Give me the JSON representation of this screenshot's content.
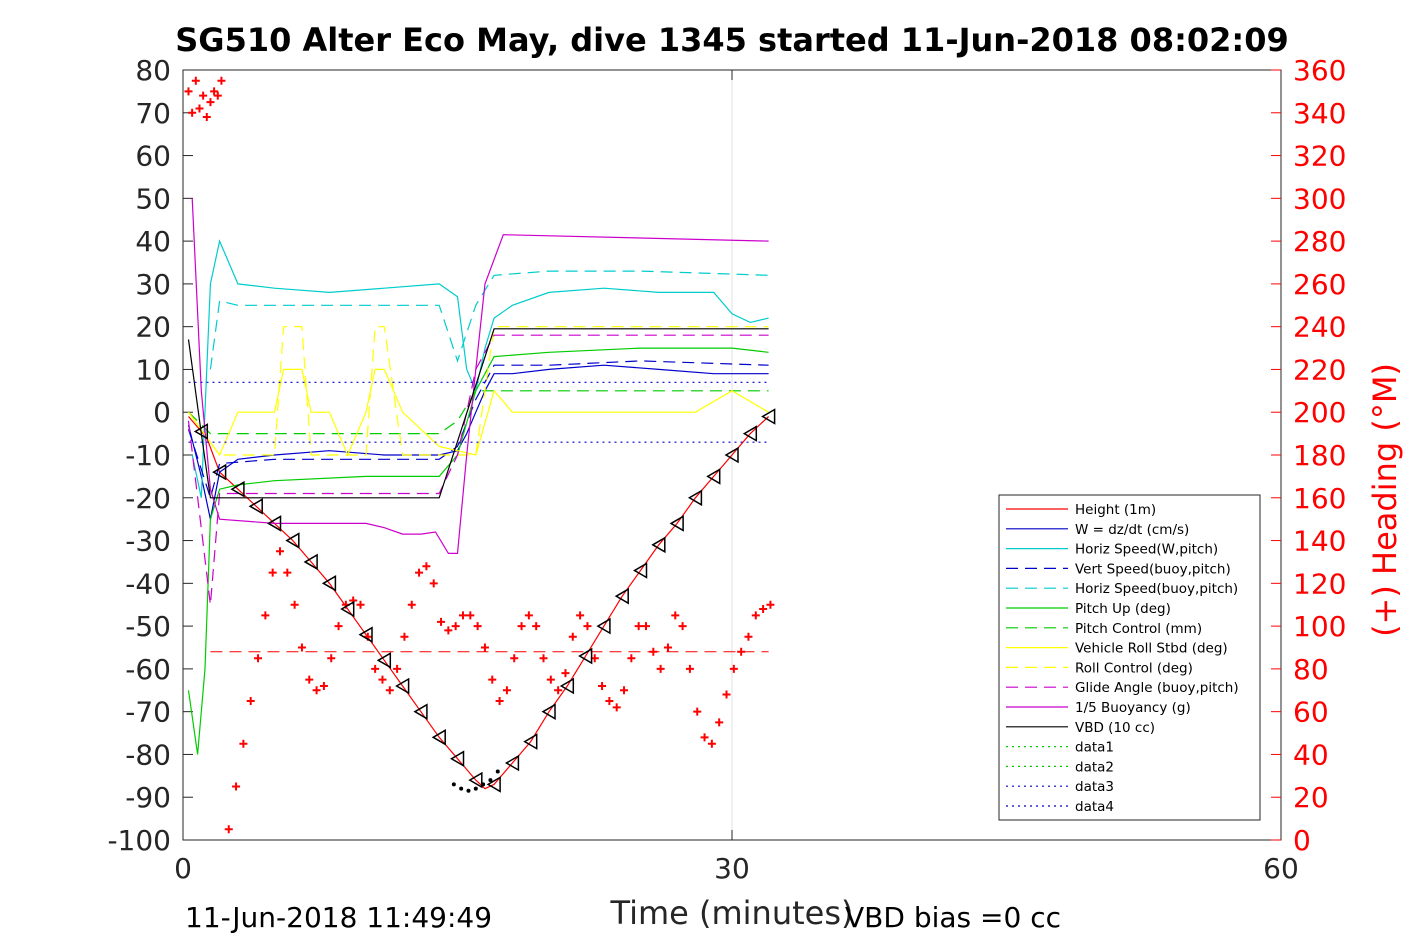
{
  "chart_data": {
    "type": "line",
    "title": "SG510 Alter Eco May, dive 1345 started 11-Jun-2018 08:02:09",
    "xlabel": "Time (minutes)",
    "ylabel": "",
    "ylabel_right": "(+) Heading (°M)",
    "xlim": [
      0,
      60
    ],
    "ylim": [
      -100,
      80
    ],
    "ylim_right": [
      0,
      360
    ],
    "x_ticks": [
      0,
      30,
      60
    ],
    "y_ticks": [
      80,
      70,
      60,
      50,
      40,
      30,
      20,
      10,
      0,
      -10,
      -20,
      -30,
      -40,
      -50,
      -60,
      -70,
      -80,
      -90,
      -100
    ],
    "y_ticks_right": [
      360,
      340,
      320,
      300,
      280,
      260,
      240,
      220,
      200,
      180,
      160,
      140,
      120,
      100,
      80,
      60,
      40,
      20,
      0
    ],
    "grid": "x-only",
    "legend_position": "lower-right",
    "footer_left": "11-Jun-2018 11:49:49",
    "footer_right": "VBD bias =0 cc",
    "series": [
      {
        "name": "Height (1m)",
        "color": "#ff0000",
        "style": "solid",
        "markers": "triangle-every-minute",
        "x": [
          0.3,
          1.3,
          2,
          3,
          4,
          5,
          6,
          7,
          8,
          9,
          10,
          11,
          12,
          13,
          14,
          15,
          16,
          16.5,
          17,
          18,
          19,
          20,
          21,
          22,
          23,
          24,
          25,
          26,
          27,
          28,
          29,
          30,
          31,
          32
        ],
        "values": [
          -1,
          -6,
          -14,
          -18,
          -22,
          -26,
          -30,
          -35,
          -40,
          -46,
          -52,
          -58,
          -64,
          -70,
          -76,
          -81,
          -86,
          -88,
          -87,
          -82,
          -77,
          -70,
          -64,
          -57,
          -50,
          -43,
          -37,
          -31,
          -26,
          -20,
          -15,
          -10,
          -5,
          -1
        ]
      },
      {
        "name": "W = dz/dt (cm/s)",
        "color": "#0000cc",
        "style": "solid",
        "x": [
          0.3,
          1,
          1.5,
          2,
          3,
          5,
          8,
          11,
          14,
          15,
          15.5,
          16,
          16.5,
          17,
          18,
          20,
          23,
          26,
          29,
          32
        ],
        "values": [
          -3,
          -15,
          -25,
          -14,
          -11,
          -10,
          -9,
          -10,
          -10,
          -9,
          -5,
          0,
          5,
          9,
          9,
          10,
          11,
          10,
          9,
          9
        ]
      },
      {
        "name": "Horiz Speed(W,pitch)",
        "color": "#00cccc",
        "style": "solid",
        "x": [
          0.5,
          1,
          1.5,
          2,
          3,
          5,
          8,
          11,
          14,
          15,
          15.5,
          16,
          16.5,
          17,
          18,
          20,
          23,
          26,
          29,
          30,
          31,
          32
        ],
        "values": [
          -10,
          -20,
          30,
          40,
          30,
          29,
          28,
          29,
          30,
          27,
          10,
          5,
          15,
          22,
          25,
          28,
          29,
          28,
          28,
          23,
          21,
          22
        ]
      },
      {
        "name": "Vert Speed(buoy,pitch)",
        "color": "#0000cc",
        "style": "dashed",
        "x": [
          0.3,
          1.5,
          2,
          5,
          10,
          14,
          15,
          16,
          17,
          20,
          25,
          32
        ],
        "values": [
          -4,
          -20,
          -12,
          -11,
          -11,
          -11,
          -8,
          3,
          11,
          11,
          12,
          11
        ]
      },
      {
        "name": "Horiz Speed(buoy,pitch)",
        "color": "#00cccc",
        "style": "dashed",
        "x": [
          1.5,
          2,
          3,
          5,
          10,
          14,
          15,
          16,
          17,
          20,
          25,
          32
        ],
        "values": [
          10,
          26,
          25,
          25,
          25,
          25,
          12,
          25,
          32,
          33,
          33,
          32
        ]
      },
      {
        "name": "Pitch Up (deg)",
        "color": "#00cc00",
        "style": "solid",
        "x": [
          0.3,
          0.8,
          1.2,
          1.5,
          2,
          3,
          5,
          10,
          14,
          15,
          16,
          17,
          20,
          25,
          30,
          32
        ],
        "values": [
          -65,
          -80,
          -60,
          -25,
          -18,
          -17,
          -16,
          -15,
          -15,
          -10,
          5,
          13,
          14,
          15,
          15,
          14
        ]
      },
      {
        "name": "Pitch Control (mm)",
        "color": "#00cc00",
        "style": "dashed",
        "x": [
          0.3,
          1.5,
          3,
          14,
          15,
          16,
          32
        ],
        "values": [
          0,
          -5,
          -5,
          -5,
          -2,
          5,
          5
        ]
      },
      {
        "name": "Vehicle Roll Stbd (deg)",
        "color": "#ffff00",
        "style": "solid",
        "x": [
          0.3,
          2,
          3,
          5,
          5.5,
          6.5,
          7,
          8,
          9,
          10,
          10.5,
          11,
          12,
          14,
          16,
          17,
          18,
          20,
          22,
          24,
          26,
          28,
          30,
          32
        ],
        "values": [
          0,
          -10,
          0,
          0,
          10,
          10,
          0,
          0,
          -10,
          0,
          10,
          10,
          0,
          -8,
          -10,
          5,
          0,
          0,
          0,
          0,
          0,
          0,
          5,
          0
        ]
      },
      {
        "name": "Roll Control (deg)",
        "color": "#ffff00",
        "style": "dashed",
        "x": [
          0.3,
          2,
          5,
          5.5,
          6.5,
          7,
          10,
          10.5,
          11,
          12,
          14,
          16,
          17,
          20,
          25,
          30,
          32
        ],
        "values": [
          0,
          -10,
          -10,
          20,
          20,
          -10,
          -10,
          20,
          20,
          -10,
          -10,
          -10,
          20,
          20,
          20,
          20,
          20
        ]
      },
      {
        "name": "Glide Angle (buoy,pitch)",
        "color": "#cc00cc",
        "style": "dashed",
        "x": [
          0.3,
          1.5,
          2,
          5,
          10,
          14,
          15,
          16,
          17,
          20,
          25,
          32
        ],
        "values": [
          -2,
          -45,
          -19,
          -19,
          -19,
          -19,
          -10,
          10,
          18,
          18,
          18,
          18
        ]
      },
      {
        "name": "1/5 Buoyancy (g)",
        "color": "#cc00cc",
        "style": "solid",
        "x": [
          0.5,
          1,
          1.5,
          2,
          5,
          10,
          11,
          12,
          13,
          13.8,
          14.5,
          15,
          15.5,
          16,
          16.5,
          17.5,
          32
        ],
        "values": [
          50,
          5,
          -18,
          -25,
          -26,
          -26,
          -27,
          -28.5,
          -28.5,
          -28,
          -33,
          -33,
          -10,
          10,
          30,
          41.5,
          40
        ]
      },
      {
        "name": "VBD (10 cc)",
        "color": "#000000",
        "style": "solid",
        "x": [
          0.3,
          1,
          1.5,
          14,
          17,
          32
        ],
        "values": [
          17,
          -5,
          -20,
          -20,
          19.5,
          19.5
        ]
      },
      {
        "name": "data1",
        "color": "#00cc00",
        "style": "dotted",
        "x": [],
        "values": []
      },
      {
        "name": "data2",
        "color": "#00cc00",
        "style": "dotted",
        "x": [],
        "values": []
      },
      {
        "name": "data3",
        "color": "#0000cc",
        "style": "dotted",
        "x": [
          0.3,
          32
        ],
        "values": [
          7,
          7
        ]
      },
      {
        "name": "data4",
        "color": "#0000cc",
        "style": "dotted",
        "x": [
          0.3,
          32
        ],
        "values": [
          -7,
          -7
        ]
      }
    ],
    "heading": {
      "name": "Heading",
      "color": "#ff0000",
      "marker": "+",
      "axis": "right",
      "x": [
        0.3,
        0.5,
        0.7,
        0.9,
        1.1,
        1.3,
        1.5,
        1.7,
        1.9,
        2.1,
        2.5,
        2.9,
        3.3,
        3.7,
        4.1,
        4.5,
        4.9,
        5.3,
        5.7,
        6.1,
        6.5,
        6.9,
        7.3,
        7.7,
        8.1,
        8.5,
        8.9,
        9.3,
        9.7,
        10.1,
        10.5,
        10.9,
        11.3,
        11.7,
        12.1,
        12.5,
        12.9,
        13.3,
        13.7,
        14.1,
        14.5,
        14.9,
        15.3,
        15.7,
        16.1,
        16.5,
        16.9,
        17.3,
        17.7,
        18.1,
        18.5,
        18.9,
        19.3,
        19.7,
        20.1,
        20.5,
        20.9,
        21.3,
        21.7,
        22.1,
        22.5,
        22.9,
        23.3,
        23.7,
        24.1,
        24.5,
        24.9,
        25.3,
        25.7,
        26.1,
        26.5,
        26.9,
        27.3,
        27.7,
        28.1,
        28.5,
        28.9,
        29.3,
        29.7,
        30.1,
        30.5,
        30.9,
        31.3,
        31.7,
        32.1
      ],
      "values": [
        350,
        340,
        355,
        342,
        348,
        338,
        345,
        350,
        348,
        355,
        5,
        25,
        45,
        65,
        85,
        105,
        125,
        135,
        125,
        110,
        90,
        75,
        70,
        72,
        85,
        100,
        110,
        112,
        110,
        95,
        80,
        75,
        70,
        80,
        95,
        110,
        125,
        128,
        120,
        102,
        98,
        100,
        105,
        105,
        100,
        90,
        75,
        65,
        70,
        85,
        100,
        105,
        100,
        85,
        75,
        70,
        78,
        95,
        105,
        100,
        85,
        72,
        65,
        62,
        70,
        85,
        100,
        100,
        88,
        80,
        90,
        105,
        100,
        80,
        60,
        48,
        45,
        55,
        68,
        80,
        88,
        95,
        105,
        108,
        110
      ]
    },
    "reference_line": {
      "color": "#ff0000",
      "style": "dashed",
      "y": -56,
      "x": [
        1.5,
        32
      ]
    },
    "vbd_dots": {
      "color": "#000000",
      "x": [
        14.8,
        15.2,
        15.6,
        16.0,
        16.4,
        16.8,
        17.2
      ],
      "values": [
        -87,
        -88,
        -88.5,
        -88,
        -87,
        -86,
        -84
      ]
    }
  }
}
